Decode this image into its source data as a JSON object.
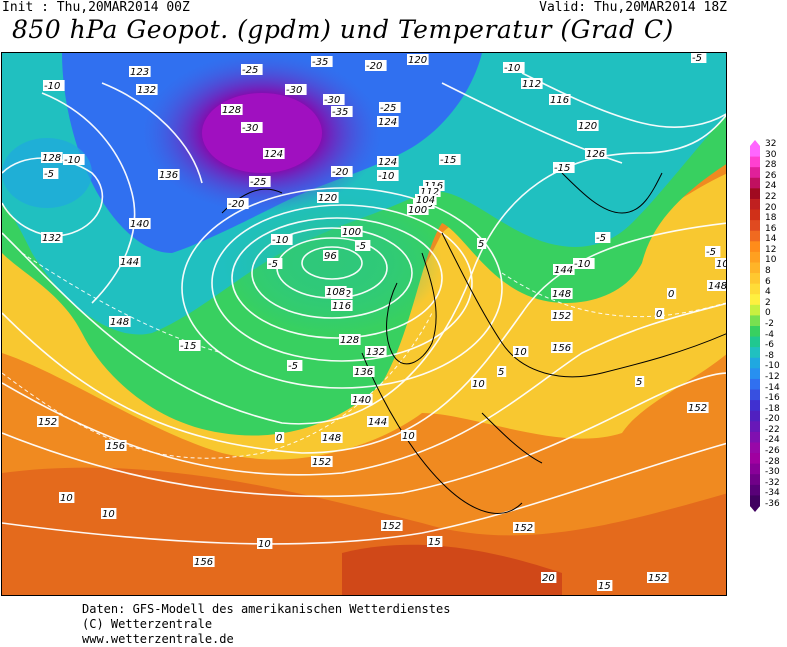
{
  "header": {
    "init": "Init : Thu,20MAR2014 00Z",
    "valid": "Valid: Thu,20MAR2014 18Z",
    "title": "850 hPa Geopot. (gpdm) und Temperatur (Grad C)"
  },
  "legend": {
    "labels": [
      "32",
      "30",
      "28",
      "26",
      "24",
      "22",
      "20",
      "18",
      "16",
      "14",
      "12",
      "10",
      "8",
      "6",
      "4",
      "2",
      "0",
      "-2",
      "-4",
      "-6",
      "-8",
      "-10",
      "-12",
      "-14",
      "-16",
      "-18",
      "-20",
      "-22",
      "-24",
      "-26",
      "-28",
      "-30",
      "-32",
      "-34",
      "-36"
    ],
    "colors": [
      "#ff66ff",
      "#ff40d0",
      "#e0209a",
      "#c01060",
      "#a00a20",
      "#c02020",
      "#d03018",
      "#e04a20",
      "#f06a20",
      "#ff8c1a",
      "#ffa020",
      "#ffb428",
      "#ffc830",
      "#ffdc38",
      "#fff040",
      "#c8f040",
      "#78e050",
      "#38d060",
      "#20c890",
      "#20c0c0",
      "#20a8e0",
      "#2890f0",
      "#3070f0",
      "#3850e0",
      "#4030d0",
      "#5020c0",
      "#6818b8",
      "#8010b0",
      "#9808a8",
      "#a000a0",
      "#880098",
      "#700088",
      "#580078",
      "#400060"
    ]
  },
  "geopotential_labels": [
    "123",
    "132",
    "128",
    "136",
    "140",
    "144",
    "148",
    "152",
    "156",
    "124",
    "120",
    "116",
    "112",
    "108",
    "104",
    "100",
    "96",
    "126"
  ],
  "temperature_labels": [
    "-10",
    "-5",
    "-20",
    "-25",
    "-30",
    "-35",
    "-15",
    "0",
    "5",
    "10",
    "15",
    "20"
  ],
  "footer": {
    "line1": "Daten: GFS-Modell des amerikanischen Wetterdienstes",
    "line2": "(C) Wetterzentrale",
    "line3": "www.wetterzentrale.de"
  }
}
